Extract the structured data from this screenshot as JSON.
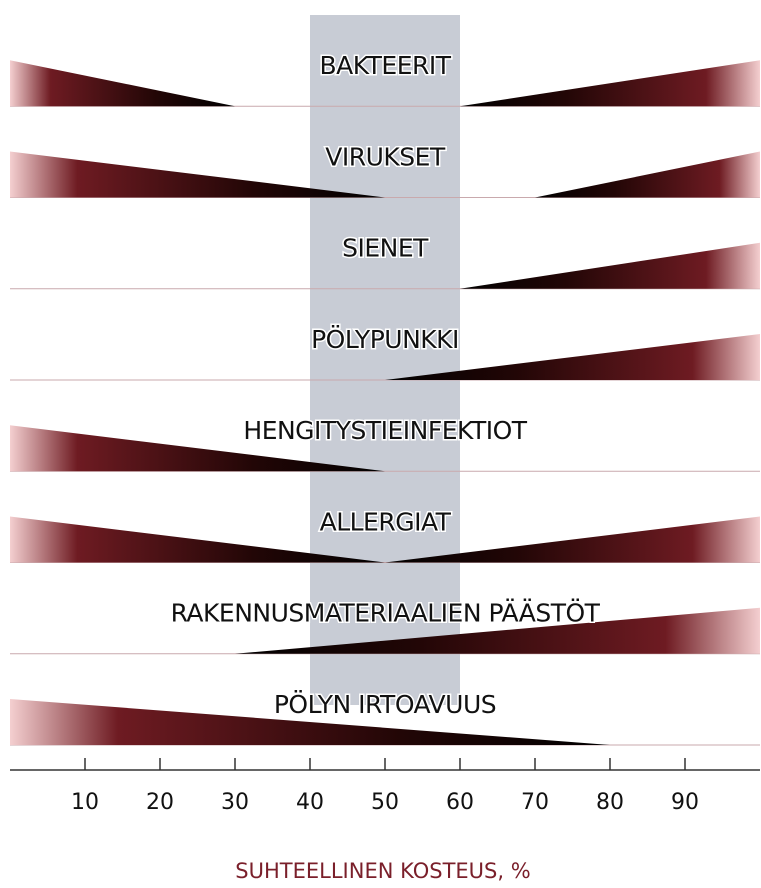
{
  "chart_data": {
    "type": "wedge-range",
    "categories": [
      "BAKTEERIT",
      "VIRUKSET",
      "SIENET",
      "PÖLYPUNKKI",
      "HENGITYSTIEINFEKTIOT",
      "ALLERGIAT",
      "RAKENNUSMATERIAALIEN PÄÄSTÖT",
      "PÖLYN IRTOAVUUS"
    ],
    "decrease_to": [
      30,
      50,
      null,
      null,
      50,
      50,
      null,
      80
    ],
    "increase_from": [
      60,
      70,
      60,
      50,
      null,
      50,
      30,
      null
    ],
    "band": [
      40,
      60
    ],
    "band_color": "#c8ccd5",
    "color": "#6e1b22",
    "xlim": [
      0,
      100
    ],
    "xticks": [
      10,
      20,
      30,
      40,
      50,
      60,
      70,
      80,
      90
    ],
    "xlabel": "SUHTEELLINEN KOSTEUS, %"
  }
}
